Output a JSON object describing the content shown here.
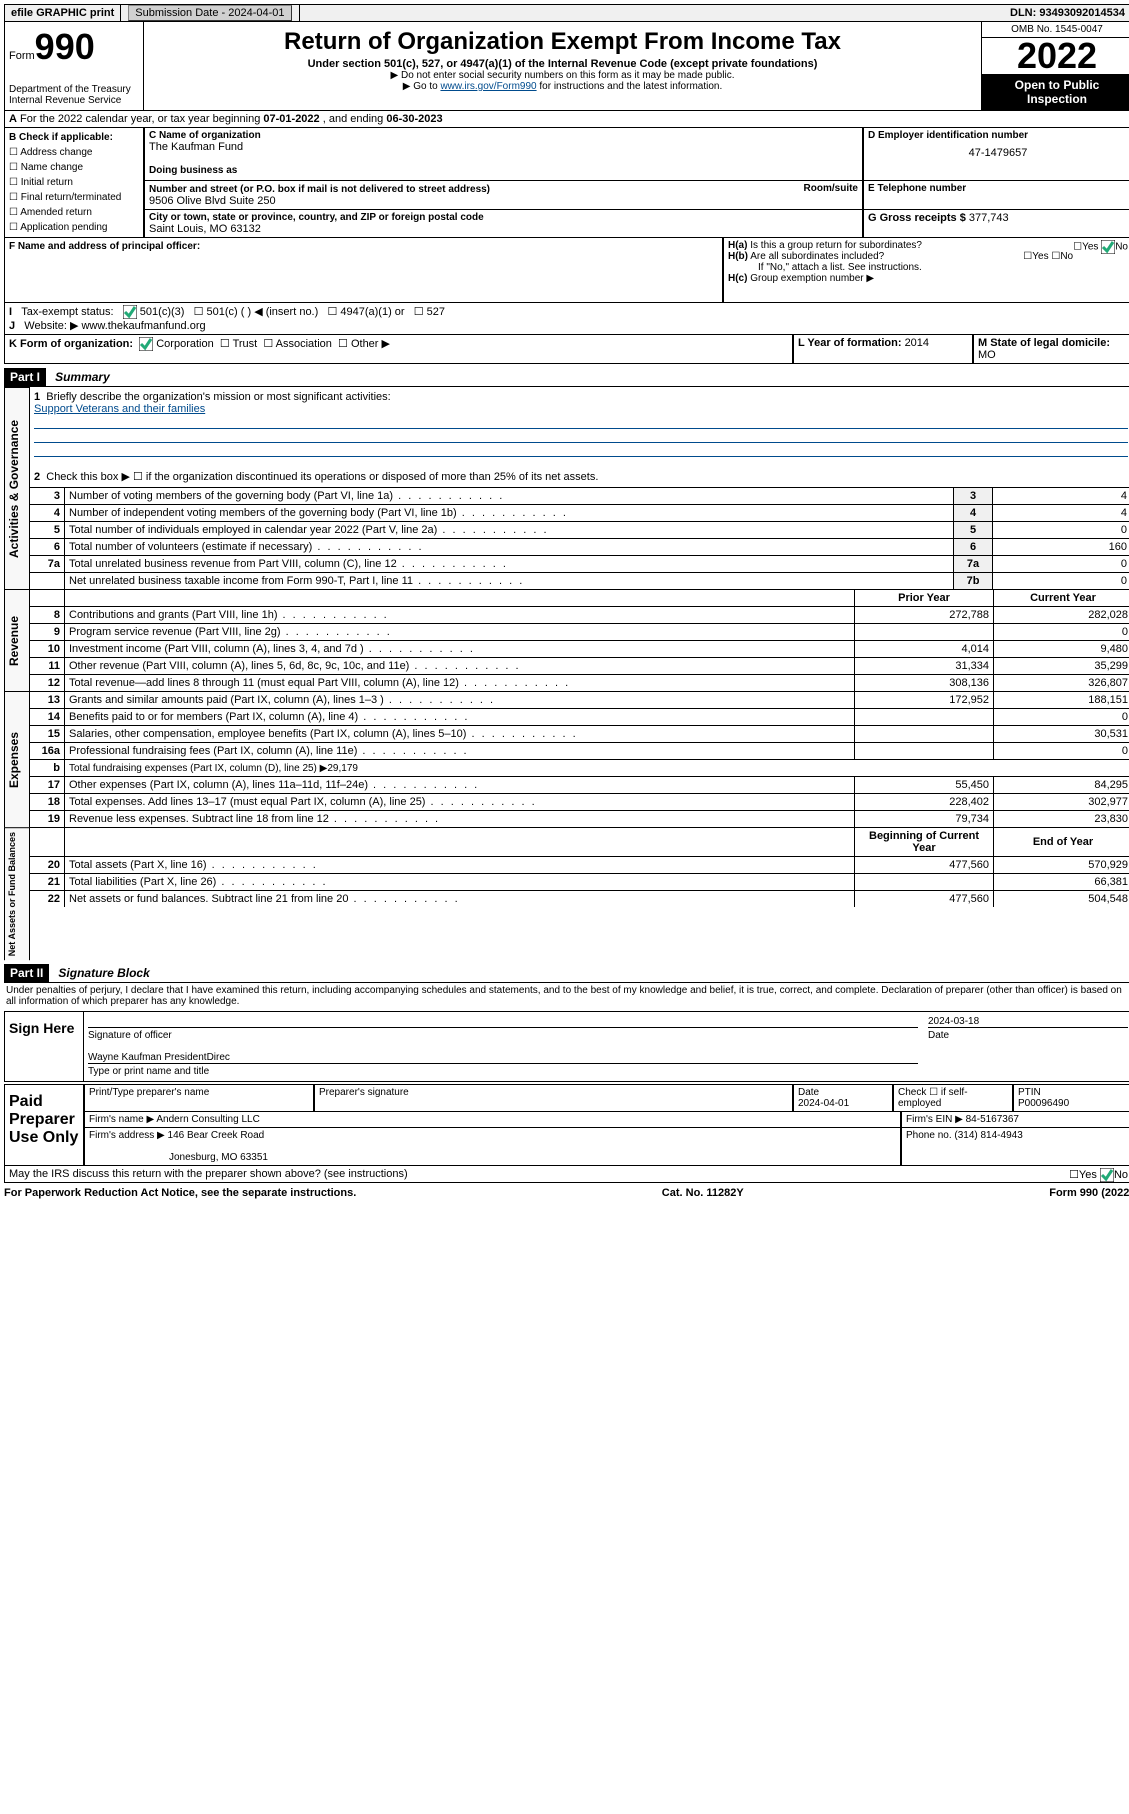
{
  "topbar": {
    "efile": "efile GRAPHIC print",
    "submission_label": "Submission Date - ",
    "submission_date": "2024-04-01",
    "dln_label": "DLN: ",
    "dln": "93493092014534"
  },
  "header": {
    "form_prefix": "Form",
    "form_number": "990",
    "dept": "Department of the Treasury",
    "irs": "Internal Revenue Service",
    "title": "Return of Organization Exempt From Income Tax",
    "subtitle": "Under section 501(c), 527, or 4947(a)(1) of the Internal Revenue Code (except private foundations)",
    "note1": "▶ Do not enter social security numbers on this form as it may be made public.",
    "note2_a": "▶ Go to ",
    "note2_link": "www.irs.gov/Form990",
    "note2_b": " for instructions and the latest information.",
    "omb": "OMB No. 1545-0047",
    "year": "2022",
    "open": "Open to Public Inspection"
  },
  "lineA": {
    "text_a": "For the 2022 calendar year, or tax year beginning ",
    "begin": "07-01-2022",
    "text_b": " , and ending ",
    "end": "06-30-2023"
  },
  "boxB": {
    "label": "B Check if applicable:",
    "items": [
      "Address change",
      "Name change",
      "Initial return",
      "Final return/terminated",
      "Amended return",
      "Application pending"
    ]
  },
  "boxC": {
    "label": "C Name of organization",
    "name": "The Kaufman Fund",
    "dba_label": "Doing business as",
    "addr_label": "Number and street (or P.O. box if mail is not delivered to street address)",
    "room_label": "Room/suite",
    "addr": "9506 Olive Blvd Suite 250",
    "city_label": "City or town, state or province, country, and ZIP or foreign postal code",
    "city": "Saint Louis, MO  63132"
  },
  "boxD": {
    "label": "D Employer identification number",
    "ein": "47-1479657"
  },
  "boxE": {
    "label": "E Telephone number"
  },
  "boxG": {
    "label": "G Gross receipts $ ",
    "val": "377,743"
  },
  "boxF": {
    "label": "F Name and address of principal officer:"
  },
  "boxH": {
    "ha": "Is this a group return for subordinates?",
    "hb": "Are all subordinates included?",
    "hb_note": "If \"No,\" attach a list. See instructions.",
    "hc": "Group exemption number ▶",
    "yes": "Yes",
    "no": "No"
  },
  "boxI": {
    "label": "Tax-exempt status:",
    "opt1": "501(c)(3)",
    "opt2": "501(c) (   ) ◀ (insert no.)",
    "opt3": "4947(a)(1) or",
    "opt4": "527"
  },
  "boxJ": {
    "label": "Website: ▶ ",
    "val": "www.thekaufmanfund.org"
  },
  "boxK": {
    "label": "K Form of organization:",
    "c": "Corporation",
    "t": "Trust",
    "a": "Association",
    "o": "Other ▶"
  },
  "boxL": {
    "label": "L Year of formation: ",
    "val": "2014"
  },
  "boxM": {
    "label": "M State of legal domicile:",
    "val": "MO"
  },
  "part1": {
    "hdr": "Part I",
    "title": "Summary",
    "side1": "Activities & Governance",
    "side2": "Revenue",
    "side3": "Expenses",
    "side4": "Net Assets or Fund Balances",
    "q1": "Briefly describe the organization's mission or most significant activities:",
    "q1a": "Support Veterans and their families",
    "q2": "Check this box ▶ ☐  if the organization discontinued its operations or disposed of more than 25% of its net assets.",
    "rows_gov": [
      {
        "n": "3",
        "t": "Number of voting members of the governing body (Part VI, line 1a)",
        "l": "3",
        "v": "4"
      },
      {
        "n": "4",
        "t": "Number of independent voting members of the governing body (Part VI, line 1b)",
        "l": "4",
        "v": "4"
      },
      {
        "n": "5",
        "t": "Total number of individuals employed in calendar year 2022 (Part V, line 2a)",
        "l": "5",
        "v": "0"
      },
      {
        "n": "6",
        "t": "Total number of volunteers (estimate if necessary)",
        "l": "6",
        "v": "160"
      },
      {
        "n": "7a",
        "t": "Total unrelated business revenue from Part VIII, column (C), line 12",
        "l": "7a",
        "v": "0"
      },
      {
        "n": "",
        "t": "Net unrelated business taxable income from Form 990-T, Part I, line 11",
        "l": "7b",
        "v": "0"
      }
    ],
    "col_prior": "Prior Year",
    "col_curr": "Current Year",
    "rows_rev": [
      {
        "n": "8",
        "t": "Contributions and grants (Part VIII, line 1h)",
        "p": "272,788",
        "c": "282,028"
      },
      {
        "n": "9",
        "t": "Program service revenue (Part VIII, line 2g)",
        "p": "",
        "c": "0"
      },
      {
        "n": "10",
        "t": "Investment income (Part VIII, column (A), lines 3, 4, and 7d )",
        "p": "4,014",
        "c": "9,480"
      },
      {
        "n": "11",
        "t": "Other revenue (Part VIII, column (A), lines 5, 6d, 8c, 9c, 10c, and 11e)",
        "p": "31,334",
        "c": "35,299"
      },
      {
        "n": "12",
        "t": "Total revenue—add lines 8 through 11 (must equal Part VIII, column (A), line 12)",
        "p": "308,136",
        "c": "326,807"
      }
    ],
    "rows_exp": [
      {
        "n": "13",
        "t": "Grants and similar amounts paid (Part IX, column (A), lines 1–3 )",
        "p": "172,952",
        "c": "188,151"
      },
      {
        "n": "14",
        "t": "Benefits paid to or for members (Part IX, column (A), line 4)",
        "p": "",
        "c": "0"
      },
      {
        "n": "15",
        "t": "Salaries, other compensation, employee benefits (Part IX, column (A), lines 5–10)",
        "p": "",
        "c": "30,531"
      },
      {
        "n": "16a",
        "t": "Professional fundraising fees (Part IX, column (A), line 11e)",
        "p": "",
        "c": "0"
      },
      {
        "n": "b",
        "t": "Total fundraising expenses (Part IX, column (D), line 25) ▶29,179",
        "p": null,
        "c": null
      },
      {
        "n": "17",
        "t": "Other expenses (Part IX, column (A), lines 11a–11d, 11f–24e)",
        "p": "55,450",
        "c": "84,295"
      },
      {
        "n": "18",
        "t": "Total expenses. Add lines 13–17 (must equal Part IX, column (A), line 25)",
        "p": "228,402",
        "c": "302,977"
      },
      {
        "n": "19",
        "t": "Revenue less expenses. Subtract line 18 from line 12",
        "p": "79,734",
        "c": "23,830"
      }
    ],
    "col_beg": "Beginning of Current Year",
    "col_end": "End of Year",
    "rows_net": [
      {
        "n": "20",
        "t": "Total assets (Part X, line 16)",
        "p": "477,560",
        "c": "570,929"
      },
      {
        "n": "21",
        "t": "Total liabilities (Part X, line 26)",
        "p": "",
        "c": "66,381"
      },
      {
        "n": "22",
        "t": "Net assets or fund balances. Subtract line 21 from line 20",
        "p": "477,560",
        "c": "504,548"
      }
    ]
  },
  "part2": {
    "hdr": "Part II",
    "title": "Signature Block",
    "decl": "Under penalties of perjury, I declare that I have examined this return, including accompanying schedules and statements, and to the best of my knowledge and belief, it is true, correct, and complete. Declaration of preparer (other than officer) is based on all information of which preparer has any knowledge.",
    "sign_here": "Sign Here",
    "sig_officer": "Signature of officer",
    "sig_date_lbl": "Date",
    "sig_date": "2024-03-18",
    "sig_name": "Wayne Kaufman  PresidentDirec",
    "sig_name_lbl": "Type or print name and title",
    "paid": "Paid Preparer Use Only",
    "prep_name_lbl": "Print/Type preparer's name",
    "prep_sig_lbl": "Preparer's signature",
    "prep_date_lbl": "Date",
    "prep_date": "2024-04-01",
    "prep_check": "Check ☐ if self-employed",
    "ptin_lbl": "PTIN",
    "ptin": "P00096490",
    "firm_name_lbl": "Firm's name    ▶ ",
    "firm_name": "Andern Consulting LLC",
    "firm_ein_lbl": "Firm's EIN ▶ ",
    "firm_ein": "84-5167367",
    "firm_addr_lbl": "Firm's address ▶ ",
    "firm_addr1": "146 Bear Creek Road",
    "firm_addr2": "Jonesburg, MO  63351",
    "phone_lbl": "Phone no. ",
    "phone": "(314) 814-4943",
    "discuss": "May the IRS discuss this return with the preparer shown above? (see instructions)"
  },
  "footer": {
    "left": "For Paperwork Reduction Act Notice, see the separate instructions.",
    "mid": "Cat. No. 11282Y",
    "right": "Form 990 (2022)"
  }
}
